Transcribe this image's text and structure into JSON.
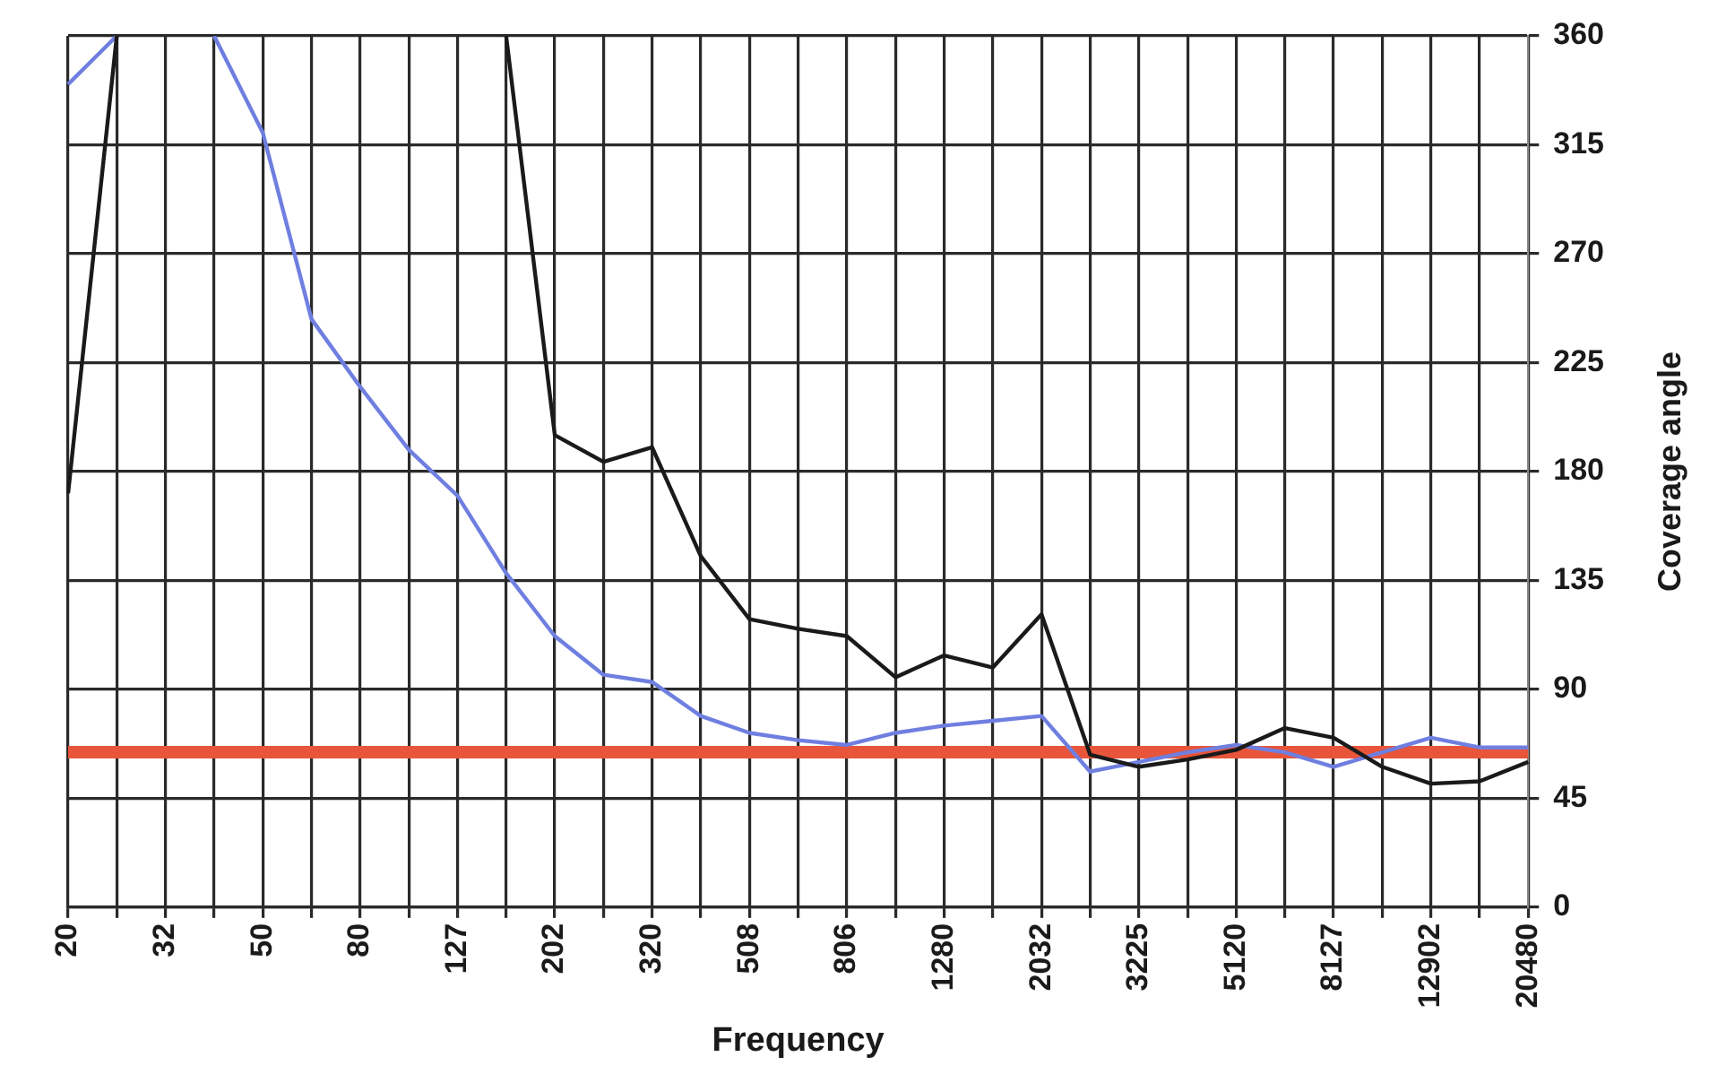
{
  "chart_data": {
    "type": "line",
    "xlabel": "Frequency",
    "ylabel": "Coverage angle",
    "categories": [
      "20",
      null,
      "32",
      null,
      "50",
      null,
      "80",
      null,
      "127",
      null,
      "202",
      null,
      "320",
      null,
      "508",
      null,
      "806",
      null,
      "1280",
      null,
      "2032",
      null,
      "3225",
      null,
      "5120",
      null,
      "8127",
      null,
      "12902",
      null,
      "20480"
    ],
    "series": [
      {
        "color": "#1a1a1a",
        "values": [
          171,
          360,
          null,
          null,
          null,
          null,
          null,
          null,
          null,
          360,
          195,
          184,
          190,
          145,
          119,
          115,
          112,
          95,
          104,
          99,
          121,
          63,
          58,
          61,
          65,
          74,
          70,
          58,
          51,
          52,
          60
        ]
      },
      {
        "color": "#6f7fe0",
        "values": [
          340,
          360,
          null,
          360,
          320,
          243,
          215,
          189,
          170,
          138,
          112,
          96,
          93,
          79,
          72,
          69,
          67,
          72,
          75,
          77,
          79,
          56,
          60,
          64,
          67,
          64,
          58,
          64,
          70,
          66,
          66
        ]
      }
    ],
    "ylim": [
      0,
      360
    ],
    "yticks": [
      0,
      45,
      90,
      135,
      180,
      225,
      270,
      315,
      360
    ],
    "grid": true,
    "legend": false,
    "marker": "none",
    "line_style": "solid",
    "ref_lines": [
      {
        "axis": "y",
        "value": 64,
        "color": "#e8553a"
      }
    ]
  }
}
